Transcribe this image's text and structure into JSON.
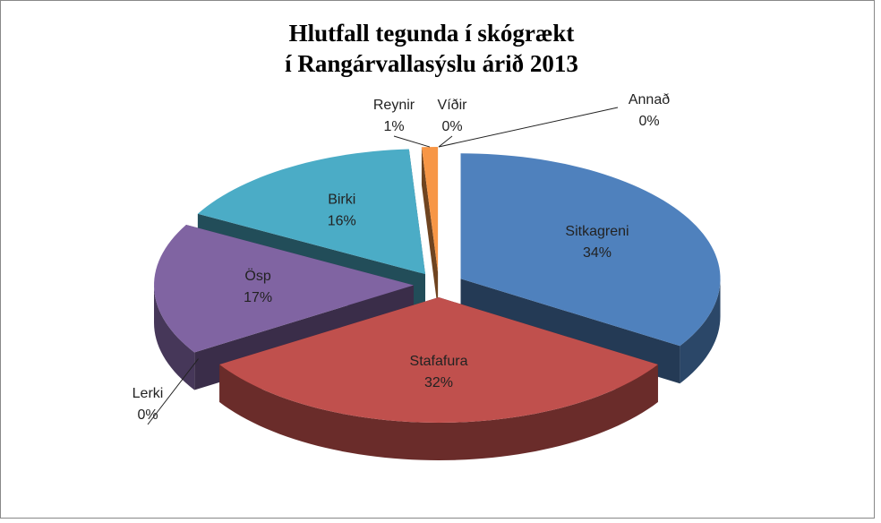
{
  "chart_data": {
    "type": "pie3d",
    "title": [
      "Hlutfall tegunda í skógrækt",
      "í Rangárvallasýslu  árið 2013"
    ],
    "categories": [
      "Sitkagreni",
      "Stafafura",
      "Lerki",
      "Ösp",
      "Birki",
      "Reynir",
      "Víðir",
      "Annað"
    ],
    "values": [
      34,
      32,
      0,
      17,
      16,
      1,
      0,
      0
    ],
    "value_labels": [
      "34%",
      "32%",
      "0%",
      "17%",
      "16%",
      "1%",
      "0%",
      "0%"
    ],
    "colors": [
      "#4f81bd",
      "#c0504d",
      "#9bbb59",
      "#8064a2",
      "#4bacc6",
      "#f79646",
      "#2c4d75",
      "#e6a0a0"
    ]
  }
}
